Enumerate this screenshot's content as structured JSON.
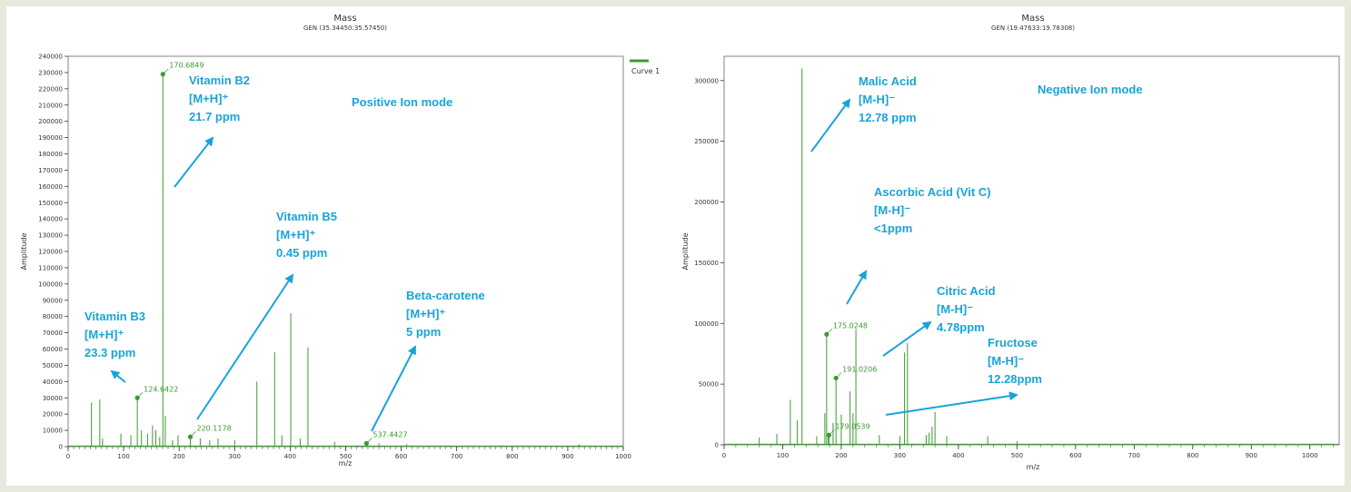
{
  "colors": {
    "curve": "#3a9a2e",
    "annotation": "#1aa3d9",
    "page_bg": "#e8e8dc"
  },
  "chart_data": [
    {
      "type": "line",
      "title": "Mass",
      "subtitle": "GEN (35.34450:35.57450)",
      "mode_label": "Positive Ion mode",
      "xlabel": "m/z",
      "ylabel": "Amplitude",
      "xlim": [
        0,
        1000
      ],
      "ylim": [
        0,
        240000
      ],
      "xticks": [
        0,
        100,
        200,
        300,
        400,
        500,
        600,
        700,
        800,
        900,
        1000
      ],
      "yticks": [
        0,
        10000,
        20000,
        30000,
        40000,
        50000,
        60000,
        70000,
        80000,
        90000,
        100000,
        110000,
        120000,
        130000,
        140000,
        150000,
        160000,
        170000,
        180000,
        190000,
        200000,
        210000,
        220000,
        230000,
        240000
      ],
      "grid": false,
      "legend": {
        "entries": [
          "Curve 1"
        ],
        "placement": "top-right"
      },
      "series": [
        {
          "name": "Curve 1",
          "x": [
            42,
            57,
            62,
            95,
            113,
            124.6422,
            132,
            143,
            152,
            158,
            165,
            170.6849,
            175,
            188,
            198,
            220.1178,
            238,
            255,
            270,
            300,
            340,
            372,
            385,
            401,
            418,
            432,
            480,
            537.4427,
            560,
            610,
            920
          ],
          "y": [
            27000,
            29000,
            5000,
            8000,
            7000,
            30000,
            10000,
            8000,
            13000,
            10000,
            6000,
            229000,
            19000,
            4000,
            7000,
            6000,
            5000,
            4000,
            5000,
            4000,
            40000,
            58000,
            7000,
            82000,
            5000,
            61000,
            3000,
            2000,
            2000,
            1500,
            1500
          ]
        }
      ],
      "markers": [
        {
          "x": 124.6422,
          "y": 30000,
          "label": "124.6422"
        },
        {
          "x": 170.6849,
          "y": 229000,
          "label": "170.6849"
        },
        {
          "x": 220.1178,
          "y": 6000,
          "label": "220.1178"
        },
        {
          "x": 537.4427,
          "y": 2000,
          "label": "537.4427"
        }
      ],
      "annotations": [
        {
          "lines": [
            "Vitamin B2",
            "[M+H]⁺",
            "21.7 ppm"
          ]
        },
        {
          "lines": [
            "Vitamin B5",
            "[M+H]⁺",
            "0.45 ppm"
          ]
        },
        {
          "lines": [
            "Beta-carotene",
            "[M+H]⁺",
            "5 ppm"
          ]
        },
        {
          "lines": [
            "Vitamin B3",
            "[M+H]⁺",
            "23.3 ppm"
          ]
        }
      ]
    },
    {
      "type": "line",
      "title": "Mass",
      "subtitle": "GEN (19.47633:19.78308)",
      "mode_label": "Negative Ion mode",
      "xlabel": "m/z",
      "ylabel": "Amplitude",
      "xlim": [
        0,
        1050
      ],
      "ylim": [
        0,
        320000
      ],
      "xticks": [
        0,
        100,
        200,
        300,
        400,
        500,
        600,
        700,
        800,
        900,
        1000
      ],
      "yticks": [
        0,
        50000,
        100000,
        150000,
        200000,
        250000,
        300000
      ],
      "grid": false,
      "legend": null,
      "series": [
        {
          "name": "",
          "x": [
            60,
            90,
            113,
            125,
            133,
            158,
            172,
            175.0248,
            178,
            179.0539,
            186,
            191.0206,
            200,
            215,
            220,
            225,
            265,
            300,
            308,
            313,
            345,
            350,
            355,
            360,
            380,
            450,
            500
          ],
          "y": [
            6000,
            9000,
            37000,
            20000,
            310000,
            7000,
            26000,
            91000,
            10000,
            8000,
            18000,
            55000,
            25000,
            44000,
            26000,
            95000,
            8000,
            7000,
            76000,
            84000,
            8000,
            10000,
            15000,
            27000,
            7000,
            7000,
            3000
          ]
        }
      ],
      "markers": [
        {
          "x": 175.0248,
          "y": 91000,
          "label": "175.0248"
        },
        {
          "x": 191.0206,
          "y": 55000,
          "label": "191.0206"
        },
        {
          "x": 179.0539,
          "y": 8000,
          "label": "179.0539"
        }
      ],
      "annotations": [
        {
          "lines": [
            "Malic Acid",
            "[M-H]⁻",
            "12.78 ppm"
          ]
        },
        {
          "lines": [
            "Ascorbic Acid (Vit C)",
            "[M-H]⁻",
            "<1ppm"
          ]
        },
        {
          "lines": [
            "Citric Acid",
            "[M-H]⁻",
            "4.78ppm"
          ]
        },
        {
          "lines": [
            "Fructose",
            "[M-H]⁻",
            "12.28ppm"
          ]
        }
      ]
    }
  ]
}
